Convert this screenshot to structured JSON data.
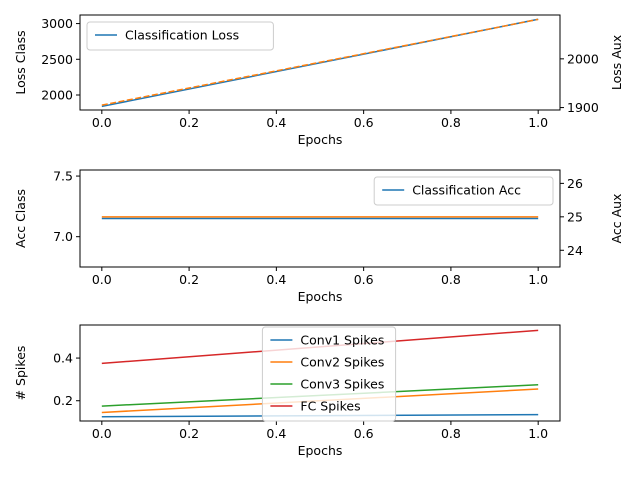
{
  "chart_data": [
    {
      "type": "line",
      "xlabel": "Epochs",
      "ylabel": "Loss Class",
      "ylabel_right": "Loss Aux",
      "x": [
        0,
        1
      ],
      "xlim": [
        -0.05,
        1.05
      ],
      "xticks": [
        "0.0",
        "0.2",
        "0.4",
        "0.6",
        "0.8",
        "1.0"
      ],
      "ylim": [
        1790,
        3120
      ],
      "yticks": [
        "2000",
        "2500",
        "3000"
      ],
      "ylim_right": [
        1895,
        2090
      ],
      "yticks_right": [
        "1900",
        "2000"
      ],
      "legend_placement": "upper-left",
      "series": [
        {
          "name": "Classification Loss",
          "values": [
            1840,
            3060
          ],
          "color": "#1f77b4",
          "axis": "left"
        },
        {
          "name": "",
          "values": [
            1905,
            2081
          ],
          "color": "#ff7f0e",
          "axis": "right",
          "dashed": true
        }
      ]
    },
    {
      "type": "line",
      "xlabel": "Epochs",
      "ylabel": "Acc Class",
      "ylabel_right": "Acc Aux",
      "x": [
        0,
        1
      ],
      "xlim": [
        -0.05,
        1.05
      ],
      "xticks": [
        "0.0",
        "0.2",
        "0.4",
        "0.6",
        "0.8",
        "1.0"
      ],
      "ylim": [
        6.75,
        7.55
      ],
      "yticks": [
        "7.0",
        "7.5"
      ],
      "ylim_right": [
        23.5,
        26.4
      ],
      "yticks_right": [
        "24",
        "25",
        "26"
      ],
      "legend_placement": "upper-right",
      "series": [
        {
          "name": "Classification Acc",
          "values": [
            7.15,
            7.15
          ],
          "color": "#1f77b4",
          "axis": "left"
        },
        {
          "name": "",
          "values": [
            25.0,
            25.0
          ],
          "color": "#ff7f0e",
          "axis": "right"
        }
      ]
    },
    {
      "type": "line",
      "xlabel": "Epochs",
      "ylabel": "# Spikes",
      "x": [
        0,
        1
      ],
      "xlim": [
        -0.05,
        1.05
      ],
      "xticks": [
        "0.0",
        "0.2",
        "0.4",
        "0.6",
        "0.8",
        "1.0"
      ],
      "ylim": [
        0.105,
        0.555
      ],
      "yticks": [
        "0.2",
        "0.4"
      ],
      "legend_placement": "upper-center",
      "series": [
        {
          "name": "Conv1 Spikes",
          "values": [
            0.125,
            0.135
          ],
          "color": "#1f77b4"
        },
        {
          "name": "Conv2 Spikes",
          "values": [
            0.145,
            0.255
          ],
          "color": "#ff7f0e"
        },
        {
          "name": "Conv3 Spikes",
          "values": [
            0.175,
            0.275
          ],
          "color": "#2ca02c"
        },
        {
          "name": "FC Spikes",
          "values": [
            0.375,
            0.53
          ],
          "color": "#d62728"
        }
      ]
    }
  ]
}
